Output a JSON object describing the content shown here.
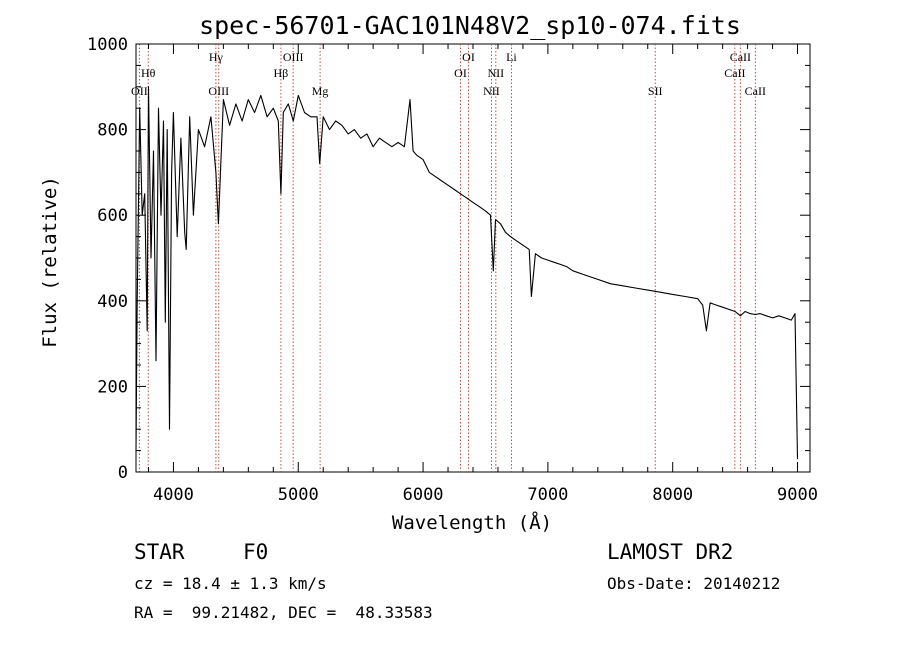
{
  "chart_data": {
    "type": "line",
    "title": "spec-56701-GAC101N48V2_sp10-074.fits",
    "xlabel": "Wavelength (Å)",
    "ylabel": "Flux (relative)",
    "xlim": [
      3700,
      9100
    ],
    "ylim": [
      0,
      1000
    ],
    "xticks": [
      4000,
      5000,
      6000,
      7000,
      8000,
      9000
    ],
    "yticks": [
      0,
      200,
      400,
      600,
      800,
      1000
    ],
    "grid": false,
    "series": [
      {
        "color": "#000000",
        "x": [
          3700,
          3710,
          3730,
          3750,
          3770,
          3790,
          3800,
          3820,
          3840,
          3860,
          3880,
          3900,
          3920,
          3935,
          3950,
          3968,
          3985,
          4000,
          4030,
          4060,
          4090,
          4102,
          4130,
          4160,
          4200,
          4250,
          4300,
          4340,
          4360,
          4400,
          4450,
          4500,
          4550,
          4600,
          4650,
          4700,
          4750,
          4800,
          4840,
          4861,
          4880,
          4920,
          4960,
          5000,
          5050,
          5100,
          5150,
          5172,
          5200,
          5250,
          5300,
          5350,
          5400,
          5450,
          5500,
          5550,
          5600,
          5650,
          5700,
          5750,
          5800,
          5850,
          5895,
          5920,
          5950,
          6000,
          6050,
          6100,
          6150,
          6200,
          6250,
          6300,
          6350,
          6400,
          6450,
          6500,
          6540,
          6563,
          6580,
          6620,
          6660,
          6700,
          6750,
          6800,
          6850,
          6868,
          6900,
          6950,
          7000,
          7050,
          7100,
          7150,
          7200,
          7300,
          7400,
          7500,
          7600,
          7700,
          7800,
          7900,
          8000,
          8100,
          8200,
          8240,
          8270,
          8300,
          8350,
          8400,
          8450,
          8500,
          8542,
          8580,
          8620,
          8662,
          8700,
          8750,
          8800,
          8850,
          8900,
          8950,
          8980,
          9000
        ],
        "values": [
          50,
          400,
          850,
          600,
          650,
          330,
          900,
          500,
          750,
          260,
          850,
          600,
          820,
          350,
          800,
          100,
          700,
          840,
          550,
          780,
          560,
          520,
          830,
          600,
          800,
          760,
          830,
          700,
          580,
          870,
          810,
          860,
          820,
          870,
          840,
          880,
          830,
          850,
          820,
          650,
          840,
          860,
          820,
          880,
          840,
          830,
          830,
          720,
          830,
          800,
          820,
          810,
          790,
          800,
          780,
          790,
          760,
          780,
          770,
          760,
          770,
          760,
          870,
          750,
          740,
          730,
          700,
          690,
          680,
          670,
          660,
          650,
          640,
          630,
          620,
          610,
          600,
          470,
          590,
          580,
          560,
          550,
          540,
          530,
          520,
          410,
          510,
          500,
          495,
          490,
          485,
          480,
          470,
          460,
          450,
          440,
          435,
          430,
          425,
          420,
          415,
          410,
          405,
          390,
          330,
          395,
          390,
          385,
          380,
          375,
          365,
          375,
          370,
          368,
          370,
          365,
          360,
          365,
          360,
          355,
          370,
          30
        ]
      }
    ],
    "annotations": [
      {
        "label": "OII",
        "x": 3727,
        "row": 3
      },
      {
        "label": "Hθ",
        "x": 3798,
        "row": 2
      },
      {
        "label": "Hγ",
        "x": 4340,
        "row": 1
      },
      {
        "label": "OIII",
        "x": 4363,
        "row": 3
      },
      {
        "label": "Hβ",
        "x": 4861,
        "row": 2
      },
      {
        "label": "OIII",
        "x": 4959,
        "row": 1
      },
      {
        "label": "Mg",
        "x": 5175,
        "row": 3
      },
      {
        "label": "OI",
        "x": 6300,
        "row": 2
      },
      {
        "label": "OI",
        "x": 6364,
        "row": 1
      },
      {
        "label": "NII",
        "x": 6548,
        "row": 3
      },
      {
        "label": "NII",
        "x": 6583,
        "row": 2
      },
      {
        "label": "Li",
        "x": 6708,
        "row": 1
      },
      {
        "label": "SII",
        "x": 7860,
        "row": 3
      },
      {
        "label": "CaII",
        "x": 8498,
        "row": 2
      },
      {
        "label": "CaII",
        "x": 8542,
        "row": 1
      },
      {
        "label": "CaII",
        "x": 8662,
        "row": 3
      }
    ]
  },
  "info": {
    "object_class": "STAR",
    "subclass": "F0",
    "survey": "LAMOST DR2",
    "redshift": "cz = 18.4 ± 1.3 km/s",
    "obs_date": "Obs-Date: 20140212",
    "coords": "RA =  99.21482, DEC =  48.33583"
  }
}
